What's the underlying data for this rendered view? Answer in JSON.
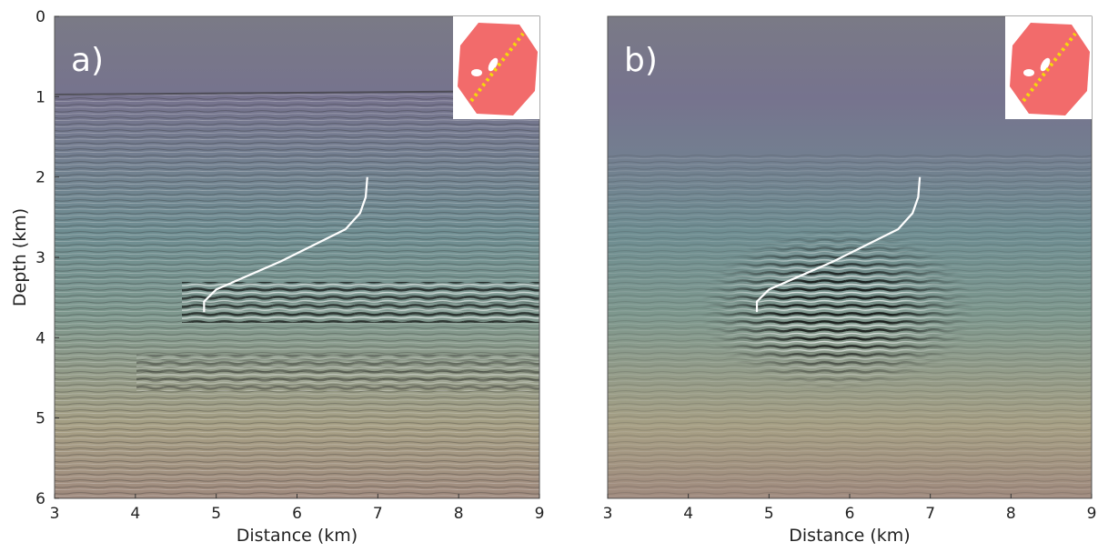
{
  "chart_data": [
    {
      "type": "image",
      "panel_label": "a)",
      "xlabel": "Distance (km)",
      "ylabel": "Depth (km)",
      "xlim": [
        3,
        9
      ],
      "ylim": [
        0,
        6
      ],
      "xticks": [
        3,
        4,
        5,
        6,
        7,
        8,
        9
      ],
      "yticks": [
        0,
        1,
        2,
        3,
        4,
        5,
        6
      ],
      "series": [
        {
          "color": "#ffffff",
          "x": [
            6.87,
            6.85,
            6.78,
            6.6,
            5.8,
            5.0,
            4.85,
            4.85
          ],
          "y": [
            2.0,
            2.25,
            2.45,
            2.65,
            3.05,
            3.4,
            3.55,
            3.68
          ]
        }
      ]
    },
    {
      "type": "image",
      "panel_label": "b)",
      "xlabel": "Distance (km)",
      "xlim": [
        3,
        9
      ],
      "ylim": [
        0,
        6
      ],
      "xticks": [
        3,
        4,
        5,
        6,
        7,
        8,
        9
      ],
      "series": [
        {
          "color": "#ffffff",
          "x": [
            6.87,
            6.85,
            6.78,
            6.6,
            5.8,
            5.0,
            4.85,
            4.85
          ],
          "y": [
            2.0,
            2.25,
            2.45,
            2.65,
            3.05,
            3.4,
            3.55,
            3.68
          ]
        }
      ]
    }
  ]
}
